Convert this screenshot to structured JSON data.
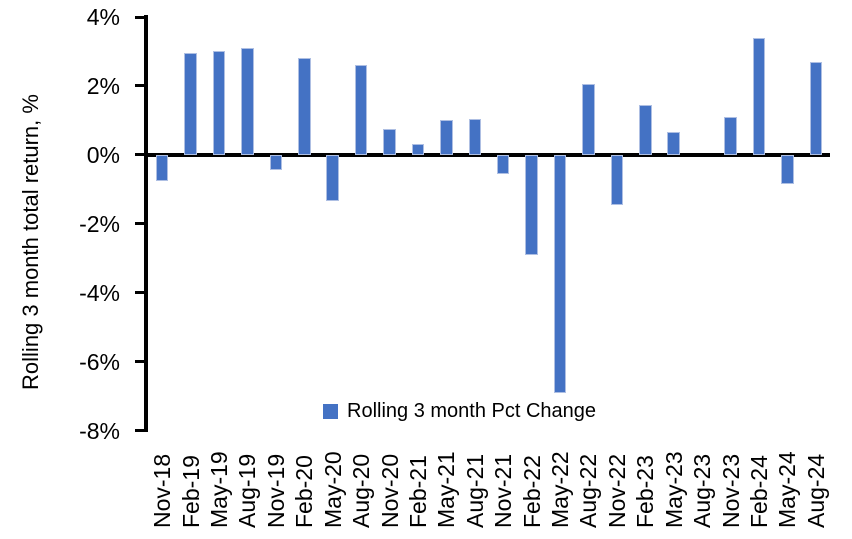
{
  "chart_data": {
    "type": "bar",
    "title": "",
    "xlabel": "",
    "ylabel": "Rolling 3 month total return, %",
    "categories": [
      "Nov-18",
      "Feb-19",
      "May-19",
      "Aug-19",
      "Nov-19",
      "Feb-20",
      "May-20",
      "Aug-20",
      "Nov-20",
      "Feb-21",
      "May-21",
      "Aug-21",
      "Nov-21",
      "Feb-22",
      "May-22",
      "Aug-22",
      "Nov-22",
      "Feb-23",
      "May-23",
      "Aug-23",
      "Nov-23",
      "Feb-24",
      "May-24",
      "Aug-24"
    ],
    "series": [
      {
        "name": "Rolling 3 month Pct Change",
        "values": [
          -0.75,
          2.95,
          3.0,
          3.1,
          -0.45,
          2.8,
          -1.35,
          2.6,
          0.75,
          0.3,
          1.0,
          1.05,
          -0.55,
          -2.9,
          -6.9,
          2.05,
          -1.45,
          1.45,
          0.65,
          0.0,
          1.1,
          3.4,
          -0.85,
          2.7
        ]
      }
    ],
    "ylim": [
      -8,
      4
    ],
    "ytick_values": [
      4,
      2,
      0,
      -2,
      -4,
      -6,
      -8
    ],
    "ytick_labels": [
      "4%",
      "2%",
      "0%",
      "-2%",
      "-4%",
      "-6%",
      "-8%"
    ],
    "grid": false,
    "legend": {
      "label": "Rolling 3 month Pct Change",
      "position": "bottom-center"
    },
    "colors": {
      "bar_fill": "#4472C4",
      "bar_border": "#AEBFE3",
      "axis": "#000000",
      "text": "#000000",
      "background": "#FFFFFF"
    }
  }
}
